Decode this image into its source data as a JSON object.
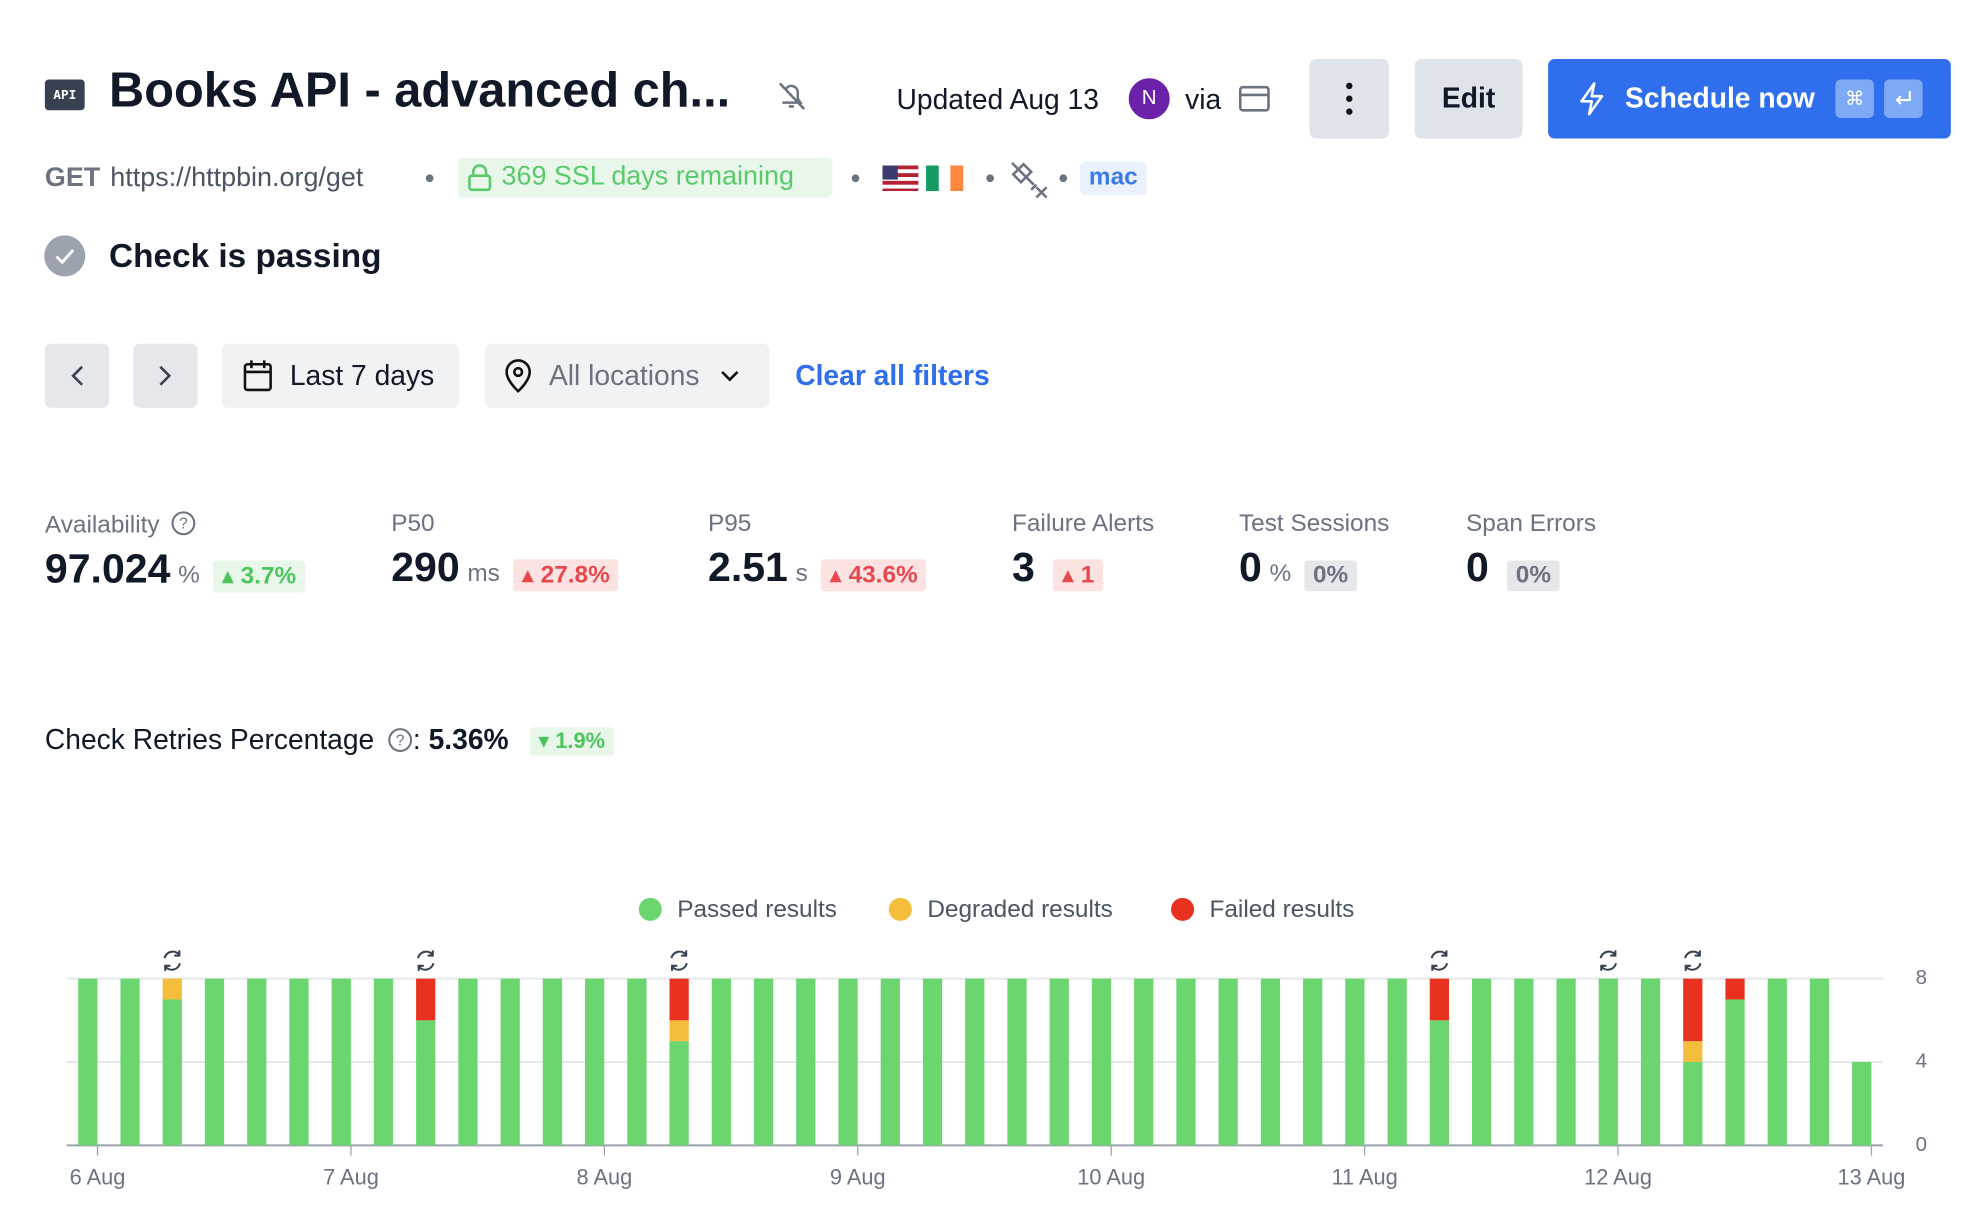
{
  "header": {
    "icon_label": "API",
    "title": "Books API - advanced ch...",
    "updated": "Updated Aug 13",
    "avatar": "N",
    "via": "via",
    "edit": "Edit",
    "schedule": "Schedule now",
    "shortcut": "⌘"
  },
  "subline": {
    "method": "GET",
    "url": "https://httpbin.org/get",
    "ssl": "369 SSL days remaining",
    "tag": "mac"
  },
  "status": "Check is passing",
  "filters": {
    "range": "Last 7 days",
    "locations": "All locations",
    "clear": "Clear all filters"
  },
  "metrics": [
    {
      "label": "Availability",
      "value": "97.024",
      "unit": "%",
      "change": "3.7%"
    },
    {
      "label": "P50",
      "value": "290",
      "unit": "ms",
      "change": "27.8%"
    },
    {
      "label": "P95",
      "value": "2.51",
      "unit": "s",
      "change": "43.6%"
    },
    {
      "label": "Failure Alerts",
      "value": "3",
      "change": "1"
    },
    {
      "label": "Test Sessions",
      "value": "0",
      "unit": "%",
      "change": "0%"
    },
    {
      "label": "Span Errors",
      "value": "0",
      "change": "0%"
    }
  ],
  "retries": {
    "label": "Check Retries Percentage",
    "separator": ":",
    "value": "5.36%",
    "change": "1.9%"
  },
  "chart_data": {
    "type": "stacked_bar",
    "categories": [
      null,
      null,
      null,
      null,
      null,
      null,
      null,
      null,
      null,
      null,
      null,
      null,
      null,
      null,
      null,
      null,
      null,
      null,
      null,
      null,
      null,
      null,
      null,
      null,
      null,
      null,
      null,
      null,
      null,
      null,
      null,
      null,
      null,
      null,
      null,
      null,
      null,
      null,
      null,
      null,
      null,
      null,
      null
    ],
    "series": [
      {
        "name": "Passed results",
        "color": "#6bd66f",
        "values": [
          8,
          8,
          7,
          8,
          8,
          8,
          8,
          8,
          6,
          8,
          8,
          8,
          8,
          8,
          5,
          8,
          8,
          8,
          8,
          8,
          8,
          8,
          8,
          8,
          8,
          8,
          8,
          8,
          8,
          8,
          8,
          8,
          6,
          8,
          8,
          8,
          8,
          8,
          4,
          7,
          8,
          8,
          4
        ]
      },
      {
        "name": "Degraded results",
        "color": "#f4bd3c",
        "values": [
          0,
          0,
          1,
          0,
          0,
          0,
          0,
          0,
          0,
          0,
          0,
          0,
          0,
          0,
          1,
          0,
          0,
          0,
          0,
          0,
          0,
          0,
          0,
          0,
          0,
          0,
          0,
          0,
          0,
          0,
          0,
          0,
          0,
          0,
          0,
          0,
          0,
          0,
          1,
          0,
          0,
          0,
          0
        ]
      },
      {
        "name": "Failed results",
        "color": "#e8321f",
        "values": [
          0,
          0,
          0,
          0,
          0,
          0,
          0,
          0,
          2,
          0,
          0,
          0,
          0,
          0,
          2,
          0,
          0,
          0,
          0,
          0,
          0,
          0,
          0,
          0,
          0,
          0,
          0,
          0,
          0,
          0,
          0,
          0,
          2,
          0,
          0,
          0,
          0,
          0,
          3,
          1,
          0,
          0,
          0
        ]
      }
    ],
    "retry_markers": [
      2,
      8,
      14,
      32,
      36,
      38
    ],
    "xtick_labels": [
      "6 Aug",
      "7 Aug",
      "8 Aug",
      "9 Aug",
      "10 Aug",
      "11 Aug",
      "12 Aug",
      "13 Aug"
    ],
    "ylim": [
      0,
      8
    ],
    "yticks": [
      0,
      4,
      8
    ],
    "grid": true,
    "legend": "top"
  }
}
